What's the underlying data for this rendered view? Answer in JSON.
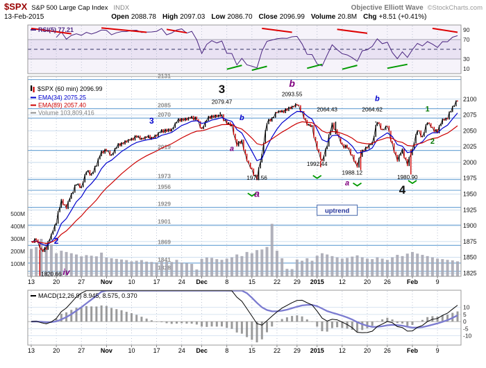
{
  "header": {
    "symbol": "$SPX",
    "name": "S&P 500 Large Cap Index",
    "exchange": "INDX",
    "brand": "Objective Elliott Wave",
    "copyright": "©StockCharts.com",
    "date": "13-Feb-2015",
    "ohlc": [
      {
        "label": "Open",
        "value": "2088.78"
      },
      {
        "label": "High",
        "value": "2097.03"
      },
      {
        "label": "Low",
        "value": "2086.70"
      },
      {
        "label": "Close",
        "value": "2096.99"
      },
      {
        "label": "Volume",
        "value": "20.8M"
      },
      {
        "label": "Chg",
        "value": "+8.51 (+0.41%)"
      }
    ]
  },
  "panels": {
    "rsi": {
      "legend_label": "RSI(5)",
      "legend_value": "77.21",
      "ticks": [
        90,
        70,
        30,
        10
      ],
      "overbought": 70,
      "oversold": 30,
      "midline": 50
    },
    "price": {
      "legend_symbol": "$SPX (60 min) 2096.99",
      "legend_emas": [
        {
          "label": "EMA(34) 2075.25",
          "color": "#0000cc",
          "render_period": 5
        },
        {
          "label": "EMA(89) 2057.40",
          "color": "#cc0000",
          "render_period": 14
        }
      ],
      "legend_volume": "Volume 103,809,416",
      "price_ticks": [
        2100,
        2075,
        2050,
        2025,
        2000,
        1975,
        1950,
        1925,
        1900,
        1875,
        1850,
        1825
      ],
      "volume_ticks": [
        {
          "label": "500M",
          "v": 500
        },
        {
          "label": "400M",
          "v": 400
        },
        {
          "label": "300M",
          "v": 300
        },
        {
          "label": "200M",
          "v": 200
        },
        {
          "label": "100M",
          "v": 100
        }
      ],
      "pivot_levels": [
        2131,
        2085,
        2070,
        2019,
        1973,
        1956,
        1929,
        1901,
        1869,
        1841,
        1828
      ],
      "ylim": [
        1820,
        2136
      ]
    },
    "macd": {
      "legend_label": "MACD(12,26,9)",
      "legend_values": "8.945, 8.575, 0.370",
      "params": [
        12,
        26,
        9
      ],
      "ticks": [
        10,
        5,
        0,
        -5,
        -10
      ],
      "ylim": [
        -16.5,
        22
      ]
    }
  },
  "chart_data": {
    "type": "line",
    "title": "$SPX 60-minute bars with RSI(5), volume and MACD(12,26,9)",
    "x_ticks": [
      {
        "label": "13",
        "i": 0,
        "bold": false
      },
      {
        "label": "20",
        "i": 5,
        "bold": false
      },
      {
        "label": "27",
        "i": 10,
        "bold": false
      },
      {
        "label": "Nov",
        "i": 15,
        "bold": true
      },
      {
        "label": "10",
        "i": 20,
        "bold": false
      },
      {
        "label": "17",
        "i": 25,
        "bold": false
      },
      {
        "label": "24",
        "i": 30,
        "bold": false
      },
      {
        "label": "Dec",
        "i": 34,
        "bold": true
      },
      {
        "label": "8",
        "i": 39,
        "bold": false
      },
      {
        "label": "15",
        "i": 44,
        "bold": false
      },
      {
        "label": "22",
        "i": 49,
        "bold": false
      },
      {
        "label": "29",
        "i": 53,
        "bold": false
      },
      {
        "label": "2015",
        "i": 57,
        "bold": true
      },
      {
        "label": "12",
        "i": 62,
        "bold": false
      },
      {
        "label": "20",
        "i": 67,
        "bold": false
      },
      {
        "label": "26",
        "i": 71,
        "bold": false
      },
      {
        "label": "Feb",
        "i": 76,
        "bold": true
      },
      {
        "label": "9",
        "i": 81,
        "bold": false
      }
    ],
    "close": [
      1874.74,
      1877.7,
      1862.49,
      1862.76,
      1886.76,
      1904.01,
      1941.28,
      1927.11,
      1950.82,
      1964.58,
      1961.63,
      1985.05,
      1982.3,
      1994.65,
      2018.05,
      2017.81,
      2012.1,
      2023.57,
      2031.21,
      2031.92,
      2038.26,
      2039.68,
      2038.25,
      2039.33,
      2039.82,
      2041.32,
      2051.8,
      2048.72,
      2052.75,
      2063.5,
      2069.41,
      2067.03,
      2072.83,
      2067.56,
      2053.44,
      2066.55,
      2074.33,
      2071.92,
      2075.37,
      2060.31,
      2059.82,
      2026.14,
      2035.33,
      2002.33,
      1989.63,
      1972.74,
      2012.89,
      2061.23,
      2070.65,
      2078.54,
      2082.17,
      2081.88,
      2088.77,
      2090.57,
      2080.35,
      2058.9,
      2058.2,
      2020.58,
      2002.61,
      2025.9,
      2062.14,
      2044.81,
      2028.26,
      2023.03,
      2011.27,
      1992.67,
      2019.42,
      2022.55,
      2032.12,
      2063.15,
      2051.82,
      2057.09,
      2029.55,
      2002.16,
      2021.25,
      1994.99,
      2020.85,
      2050.03,
      2041.51,
      2062.52,
      2055.47,
      2046.74,
      2068.59,
      2068.53,
      2088.48,
      2096.99
    ],
    "volume_millions": [
      220,
      235,
      300,
      270,
      255,
      185,
      205,
      195,
      185,
      175,
      160,
      170,
      165,
      160,
      190,
      150,
      145,
      140,
      135,
      130,
      120,
      125,
      130,
      118,
      115,
      112,
      125,
      120,
      115,
      132,
      110,
      105,
      100,
      55,
      140,
      150,
      148,
      138,
      132,
      142,
      152,
      175,
      162,
      195,
      185,
      210,
      215,
      235,
      420,
      205,
      145,
      60,
      58,
      135,
      125,
      145,
      125,
      165,
      185,
      175,
      162,
      152,
      142,
      148,
      158,
      168,
      152,
      142,
      138,
      152,
      142,
      132,
      152,
      172,
      162,
      182,
      195,
      182,
      172,
      162,
      152,
      142,
      138,
      132,
      128,
      120
    ],
    "extremes": [
      {
        "i": 2,
        "low": 1820.66
      },
      {
        "i": 38,
        "high": 2079.47
      },
      {
        "i": 45,
        "low": 1972.56
      },
      {
        "i": 53,
        "high": 2093.55
      },
      {
        "i": 58,
        "low": 1992.44
      },
      {
        "i": 61,
        "high": 2064.43
      },
      {
        "i": 66,
        "low": 1988.12
      },
      {
        "i": 69,
        "high": 2064.62
      },
      {
        "i": 76,
        "low": 1980.9
      },
      {
        "i": 85,
        "high": 2097.03
      }
    ],
    "annotations": {
      "wave_labels": [
        {
          "text": "2",
          "i": 5,
          "price": 1876,
          "color": "blue",
          "size": 12,
          "italic": false
        },
        {
          "text": "iv",
          "i": 7,
          "price": 1827,
          "color": "purple",
          "size": 12,
          "italic": true
        },
        {
          "text": "3",
          "i": 24,
          "price": 2066,
          "color": "blue",
          "size": 12,
          "italic": false
        },
        {
          "text": "3",
          "i": 38,
          "price": 2116,
          "color": "black",
          "size": 17,
          "italic": false
        },
        {
          "text": "a",
          "i": 40,
          "price": 2022,
          "color": "purple",
          "size": 11,
          "italic": true
        },
        {
          "text": "b",
          "i": 42,
          "price": 2071,
          "color": "blue",
          "size": 11,
          "italic": true
        },
        {
          "text": "a",
          "i": 45,
          "price": 1951,
          "color": "purple",
          "size": 14,
          "italic": true
        },
        {
          "text": "b",
          "i": 52,
          "price": 2125,
          "color": "purple",
          "size": 14,
          "italic": true
        },
        {
          "text": "a",
          "i": 63,
          "price": 1968,
          "color": "purple",
          "size": 11,
          "italic": true
        },
        {
          "text": "b",
          "i": 69,
          "price": 2101,
          "color": "blue",
          "size": 11,
          "italic": true
        },
        {
          "text": "4",
          "i": 74,
          "price": 1957,
          "color": "black",
          "size": 17,
          "italic": false
        },
        {
          "text": "1",
          "i": 79,
          "price": 2085,
          "color": "green",
          "size": 11,
          "italic": false
        },
        {
          "text": "2",
          "i": 80,
          "price": 2034,
          "color": "green",
          "size": 11,
          "italic": false
        }
      ],
      "price_labels": [
        {
          "text": "1820.66",
          "i": 4,
          "price": 1824
        },
        {
          "text": "2079.47",
          "i": 38,
          "price": 2096
        },
        {
          "text": "1972.56",
          "i": 45,
          "price": 1976
        },
        {
          "text": "2093.55",
          "i": 52,
          "price": 2108
        },
        {
          "text": "1992.44",
          "i": 57,
          "price": 1998
        },
        {
          "text": "2064.43",
          "i": 59,
          "price": 2084
        },
        {
          "text": "1988.12",
          "i": 64,
          "price": 1984
        },
        {
          "text": "2064.62",
          "i": 68,
          "price": 2084
        },
        {
          "text": "1980.90",
          "i": 75,
          "price": 1977
        }
      ],
      "uptrend_box": {
        "text": "uptrend",
        "i": 61,
        "price": 1924
      },
      "green_checks": [
        [
          44,
          1947
        ],
        [
          57,
          1975
        ],
        [
          65,
          1963
        ],
        [
          76,
          1967
        ]
      ],
      "rsi_red_segments": [
        [
          0,
          93,
          8,
          82
        ],
        [
          14,
          94,
          23,
          85
        ],
        [
          27,
          91,
          31,
          84
        ],
        [
          46,
          93,
          52,
          85
        ],
        [
          61,
          91,
          67,
          83
        ],
        [
          80,
          93,
          85,
          85
        ]
      ],
      "rsi_green_segments": [
        [
          39,
          9,
          42,
          17
        ],
        [
          44,
          7,
          47,
          15
        ],
        [
          55,
          11,
          58,
          19
        ],
        [
          62,
          9,
          65,
          17
        ],
        [
          71,
          11,
          75,
          19
        ]
      ]
    }
  },
  "colors": {
    "pivot_line": "#74a9d8",
    "grid_line": "#bdd4ea",
    "vgrid_line": "#aab4c8",
    "bar_up": "#000000",
    "bar_down": "#cc0000",
    "volume_bar": "#a9a9b4",
    "rsi_line": "#4a2580",
    "rsi_band": "#e9e2f3",
    "rsi_panel_bg": "#f6f3fa",
    "macd_line": "#000000",
    "macd_signal": "#7b7bd0",
    "macd_hist": "#8a8a8a",
    "annotation_blue": "#0000cc",
    "annotation_purple": "#800080",
    "annotation_green": "#007700",
    "annotation_black": "#111111",
    "pivot_label": "#8a8a8a",
    "uptrend_text": "#223399",
    "uptrend_border": "#4466aa"
  }
}
